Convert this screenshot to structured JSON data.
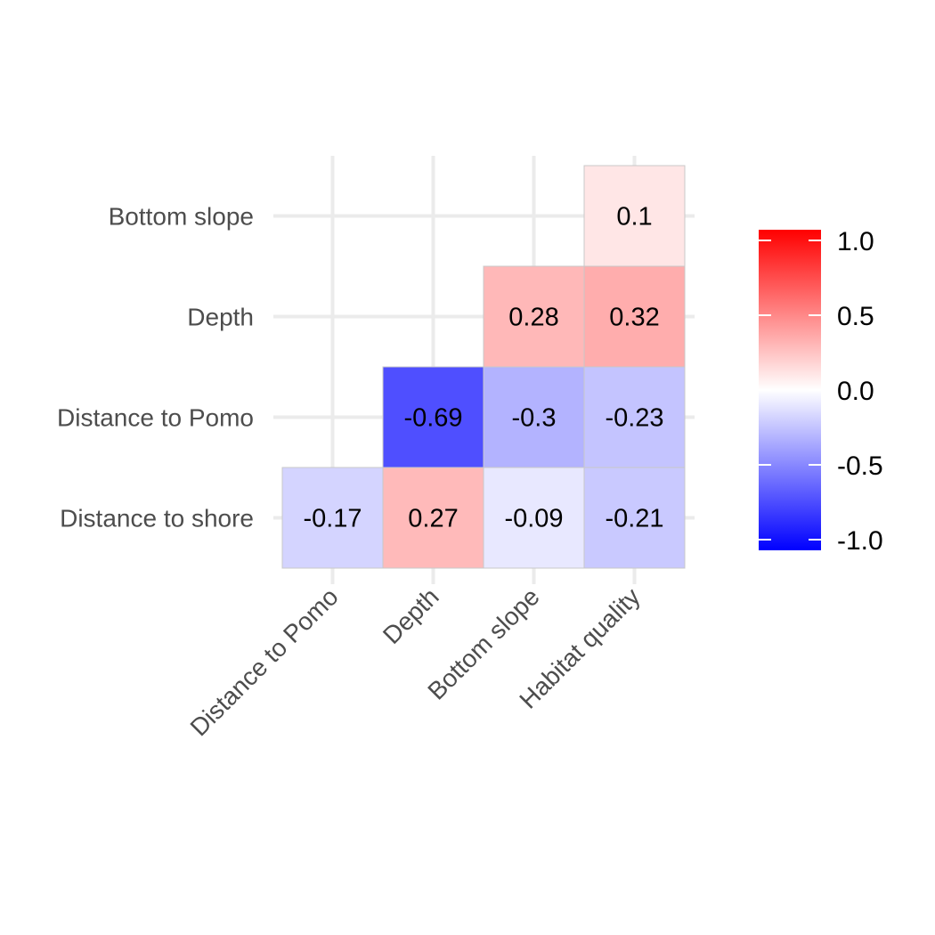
{
  "chart_data": {
    "type": "heatmap",
    "title": "",
    "xlabel": "",
    "ylabel": "",
    "x_categories": [
      "Distance to Pomo",
      "Depth",
      "Bottom slope",
      "Habitat quality"
    ],
    "y_categories": [
      "Distance to shore",
      "Distance to Pomo",
      "Depth",
      "Bottom slope"
    ],
    "cells": [
      {
        "x": "Distance to Pomo",
        "y": "Distance to shore",
        "value": -0.17,
        "label": "-0.17"
      },
      {
        "x": "Depth",
        "y": "Distance to shore",
        "value": 0.27,
        "label": "0.27"
      },
      {
        "x": "Bottom slope",
        "y": "Distance to shore",
        "value": -0.09,
        "label": "-0.09"
      },
      {
        "x": "Habitat quality",
        "y": "Distance to shore",
        "value": -0.21,
        "label": "-0.21"
      },
      {
        "x": "Depth",
        "y": "Distance to Pomo",
        "value": -0.69,
        "label": "-0.69"
      },
      {
        "x": "Bottom slope",
        "y": "Distance to Pomo",
        "value": -0.3,
        "label": "-0.3"
      },
      {
        "x": "Habitat quality",
        "y": "Distance to Pomo",
        "value": -0.23,
        "label": "-0.23"
      },
      {
        "x": "Bottom slope",
        "y": "Depth",
        "value": 0.28,
        "label": "0.28"
      },
      {
        "x": "Habitat quality",
        "y": "Depth",
        "value": 0.32,
        "label": "0.32"
      },
      {
        "x": "Habitat quality",
        "y": "Bottom slope",
        "value": 0.1,
        "label": "0.1"
      }
    ],
    "color_scale": {
      "low": "#0000ff",
      "mid": "#ffffff",
      "high": "#ff0000",
      "limits": [
        -1.0,
        1.0
      ],
      "ticks": [
        1.0,
        0.5,
        0.0,
        -0.5,
        -1.0
      ],
      "tick_labels": [
        "1.0",
        "0.5",
        "0.0",
        "-0.5",
        "-1.0"
      ]
    },
    "grid": true,
    "legend_position": "right"
  }
}
